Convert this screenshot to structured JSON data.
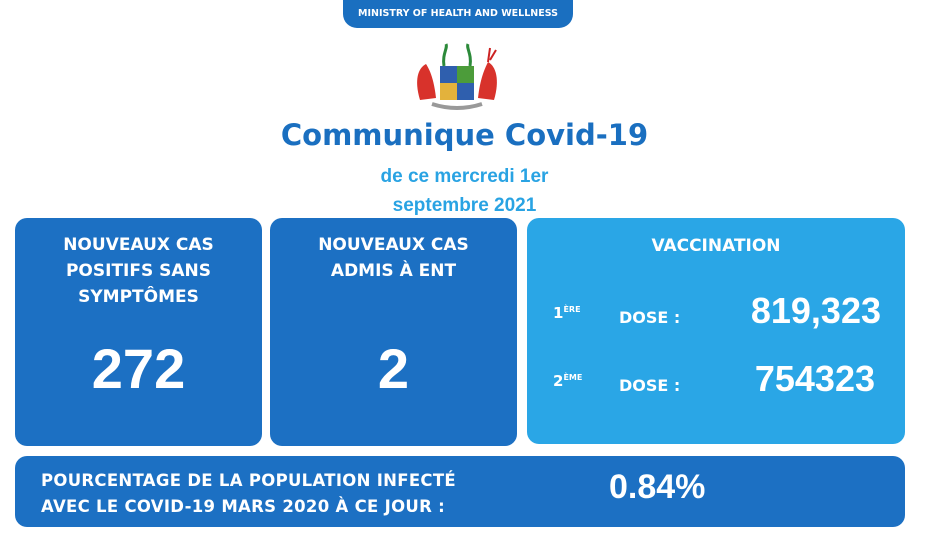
{
  "header": {
    "ministry": "MINISTRY OF HEALTH AND WELLNESS",
    "emblem_icon": "mauritius-coat-of-arms",
    "title": "Communique Covid-19",
    "date_line1": "de ce mercredi 1er",
    "date_line2": "septembre 2021"
  },
  "cards": [
    {
      "label_lines": [
        "NOUVEAUX CAS",
        "POSITIFS SANS",
        "SYMPTÔMES"
      ],
      "value": "272"
    },
    {
      "label_lines": [
        "NOUVEAUX CAS",
        "ADMIS À ENT"
      ],
      "value": "2"
    }
  ],
  "vaccination": {
    "title": "VACCINATION",
    "doses": [
      {
        "ordinal": "1",
        "ordinal_sup": "ÈRE",
        "label": "DOSE :",
        "value": "819,323"
      },
      {
        "ordinal": "2",
        "ordinal_sup": "ÈME",
        "label": "DOSE :",
        "value": "754323"
      }
    ]
  },
  "infection": {
    "label_line1": "POURCENTAGE DE LA POPULATION INFECTÉ",
    "label_line2": "AVEC LE COVID-19 MARS 2020 À CE JOUR :",
    "value": "0.84%"
  },
  "colors": {
    "dark_blue": "#1c70c3",
    "light_blue": "#2aa6e6"
  }
}
